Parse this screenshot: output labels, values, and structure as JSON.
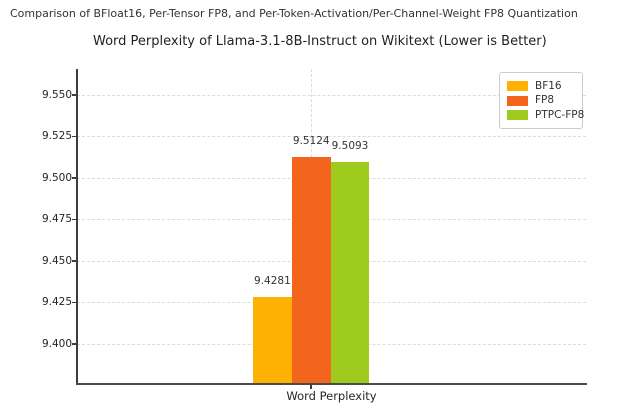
{
  "chart_data": {
    "type": "bar",
    "suptitle": "Comparison of BFloat16, Per-Tensor FP8, and Per-Token-Activation/Per-Channel-Weight FP8 Quantization",
    "title": "Word Perplexity of Llama-3.1-8B-Instruct on Wikitext (Lower is Better)",
    "xlabel": "Word Perplexity",
    "categories": [
      "Word Perplexity"
    ],
    "series": [
      {
        "name": "BF16",
        "values": [
          9.4281
        ],
        "labels": [
          "9.4281"
        ],
        "color": "#ffb103"
      },
      {
        "name": "FP8",
        "values": [
          9.5124
        ],
        "labels": [
          "9.5124"
        ],
        "color": "#f3641d"
      },
      {
        "name": "PTPC-FP8",
        "values": [
          9.5093
        ],
        "labels": [
          "9.5093"
        ],
        "color": "#9ecb1e"
      }
    ],
    "yticks": [
      "9.400",
      "9.425",
      "9.450",
      "9.475",
      "9.500",
      "9.525",
      "9.550"
    ],
    "ylim": [
      9.3765,
      9.5655
    ],
    "grid": true,
    "grid_style": "dashed",
    "legend_position": "upper right",
    "note": "Lower is Better"
  }
}
